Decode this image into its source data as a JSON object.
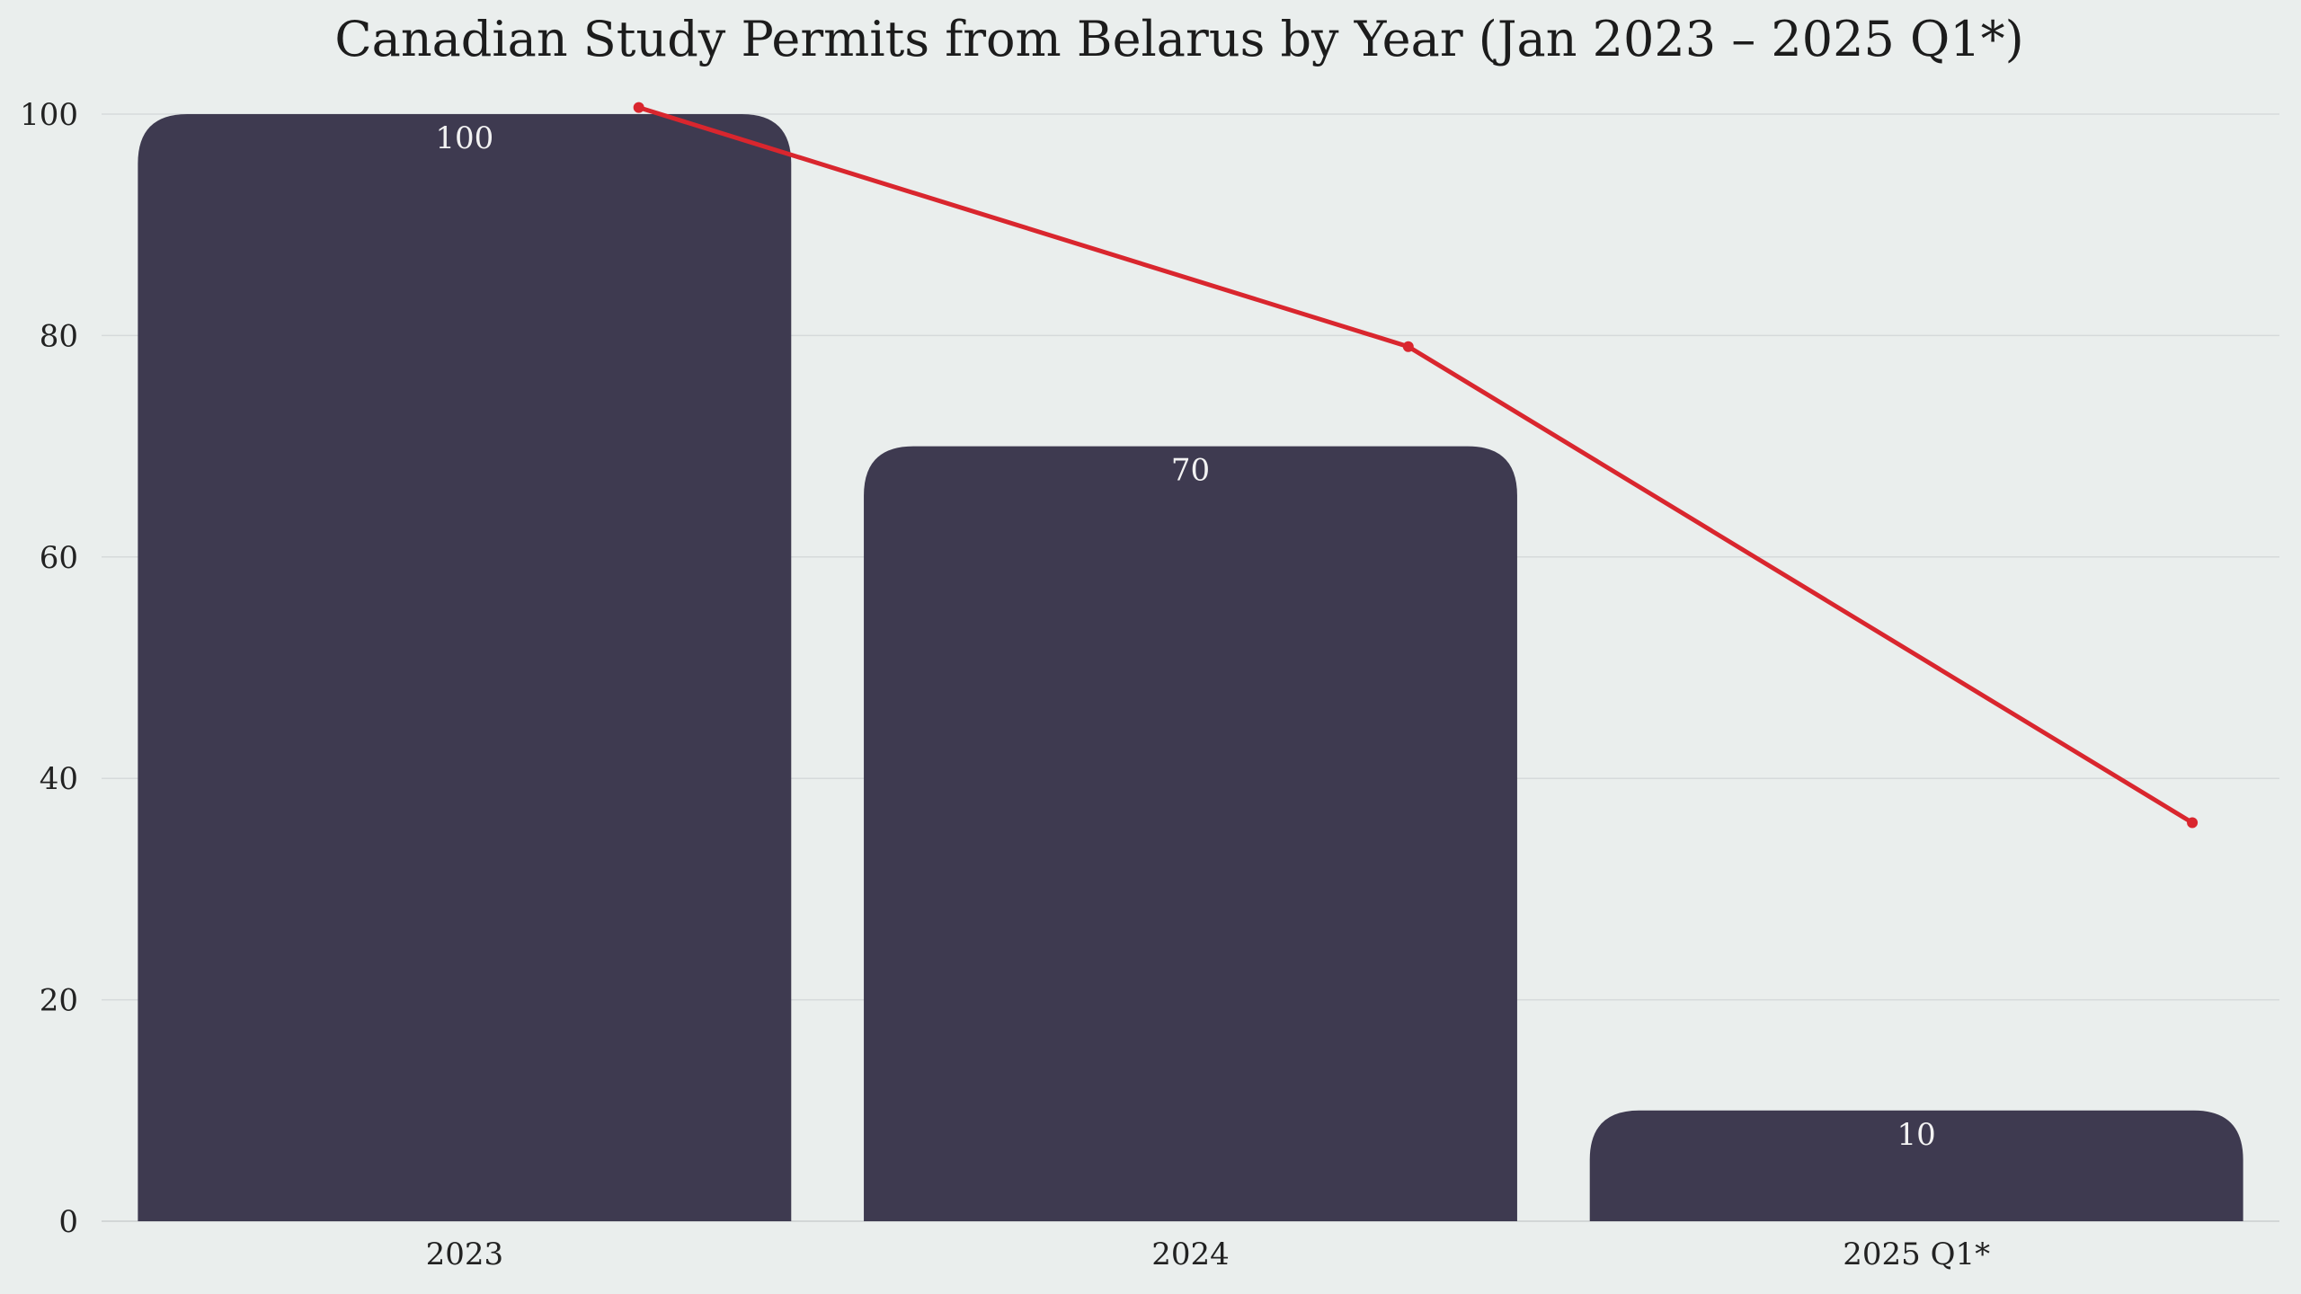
{
  "chart_data": {
    "type": "bar",
    "title": "Canadian Study Permits from Belarus by Year (Jan 2023 – 2025 Q1*)",
    "xlabel": "",
    "ylabel": "",
    "categories": [
      "2023",
      "2024",
      "2025 Q1*"
    ],
    "values": [
      100,
      70,
      10
    ],
    "data_labels": [
      "100",
      "70",
      "10"
    ],
    "overlay_line": {
      "type": "line",
      "x_positions": [
        0.24,
        1.3,
        2.38
      ],
      "values": [
        100.6,
        79,
        36
      ]
    },
    "ylim": [
      0,
      100
    ],
    "yticks": [
      0,
      20,
      40,
      60,
      80,
      100
    ],
    "ytick_labels": [
      "0",
      "20",
      "40",
      "60",
      "80",
      "100"
    ],
    "grid": true,
    "legend": "none",
    "colors": {
      "background": "#eaeeed",
      "bar": "#3e3a50",
      "line": "#d9262e",
      "grid": "#d6dadb"
    }
  }
}
